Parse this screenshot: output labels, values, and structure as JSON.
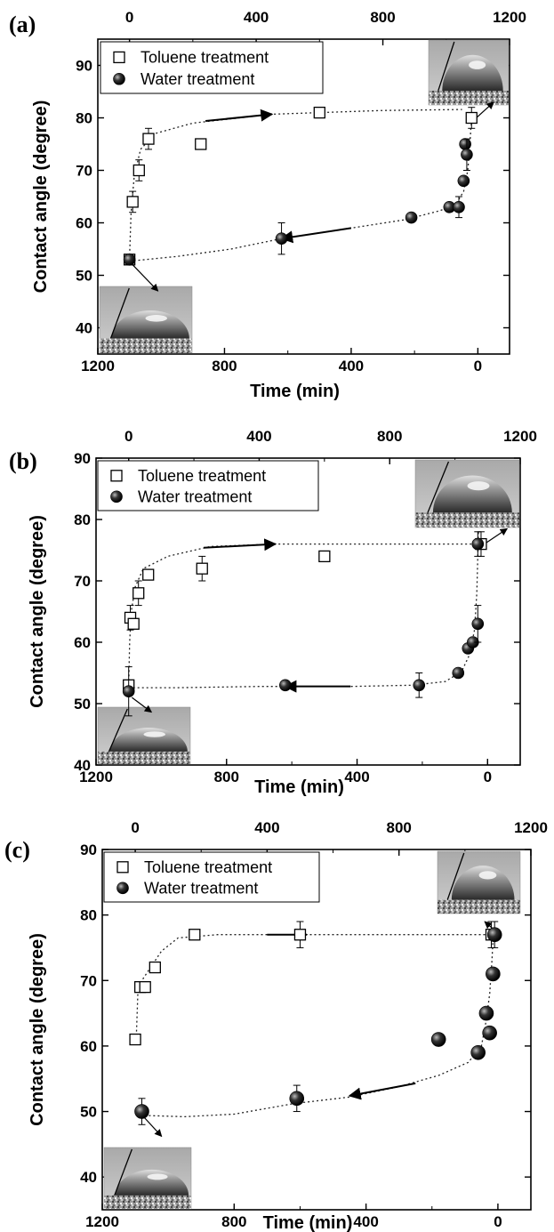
{
  "chart_data": [
    {
      "type": "scatter",
      "panel": "(a)",
      "xlabel": "Time (min)",
      "ylabel": "Contact angle (degree)",
      "xlim": [
        1200,
        -100
      ],
      "ylim": [
        35,
        95
      ],
      "top_xlim": [
        -100,
        1200
      ],
      "x_ticks": [
        1200,
        800,
        400,
        0
      ],
      "top_x_ticks": [
        0,
        400,
        800,
        1200
      ],
      "y_ticks": [
        40,
        50,
        60,
        70,
        80,
        90
      ],
      "legend": [
        "Toluene treatment",
        "Water treatment"
      ],
      "series": [
        {
          "name": "Toluene treatment",
          "marker": "open-square",
          "axis": "top",
          "x": [
            0,
            10,
            30,
            60,
            225,
            600,
            1080
          ],
          "y": [
            53,
            64,
            70,
            76,
            75,
            81,
            80
          ],
          "err": [
            0,
            2,
            2,
            2,
            0,
            0,
            2
          ]
        },
        {
          "name": "Water treatment",
          "marker": "filled-sphere",
          "axis": "bottom",
          "x": [
            1100,
            620,
            210,
            90,
            60,
            45,
            40,
            35
          ],
          "y": [
            53,
            57,
            61,
            63,
            63,
            68,
            75,
            73
          ],
          "err": [
            0,
            3,
            0,
            0,
            2,
            0,
            0,
            3
          ]
        }
      ]
    },
    {
      "type": "scatter",
      "panel": "(b)",
      "xlabel": "Time (min)",
      "ylabel": "Contact angle (degree)",
      "xlim": [
        1200,
        -100
      ],
      "ylim": [
        40,
        90
      ],
      "top_xlim": [
        -100,
        1200
      ],
      "x_ticks": [
        1200,
        800,
        400,
        0
      ],
      "top_x_ticks": [
        0,
        400,
        800,
        1200
      ],
      "y_ticks": [
        40,
        50,
        60,
        70,
        80,
        90
      ],
      "legend": [
        "Toluene treatment",
        "Water treatment"
      ],
      "series": [
        {
          "name": "Toluene treatment",
          "marker": "open-square",
          "axis": "top",
          "x": [
            0,
            5,
            15,
            30,
            60,
            225,
            600,
            1080
          ],
          "y": [
            53,
            64,
            63,
            68,
            71,
            72,
            74,
            76
          ],
          "err": [
            0,
            2,
            0,
            2,
            0,
            2,
            0,
            2
          ]
        },
        {
          "name": "Water treatment",
          "marker": "filled-sphere",
          "axis": "bottom",
          "x": [
            1100,
            620,
            210,
            90,
            60,
            45,
            30,
            30
          ],
          "y": [
            52,
            53,
            53,
            55,
            59,
            60,
            63,
            76
          ],
          "err": [
            4,
            0,
            2,
            0,
            0,
            0,
            3,
            2
          ]
        }
      ]
    },
    {
      "type": "scatter",
      "panel": "(c)",
      "xlabel": "Time (min)",
      "ylabel": "Contact angle (degree)",
      "xlim": [
        1200,
        -100
      ],
      "ylim": [
        35,
        90
      ],
      "top_xlim": [
        -100,
        1200
      ],
      "x_ticks": [
        1200,
        800,
        400,
        0
      ],
      "top_x_ticks": [
        0,
        400,
        800,
        1200
      ],
      "y_ticks": [
        40,
        50,
        60,
        70,
        80,
        90
      ],
      "legend": [
        "Toluene treatment",
        "Water treatment"
      ],
      "series": [
        {
          "name": "Toluene treatment",
          "marker": "open-square",
          "axis": "top",
          "x": [
            0,
            15,
            30,
            60,
            180,
            500,
            1080
          ],
          "y": [
            61,
            69,
            69,
            72,
            77,
            77,
            77
          ],
          "err": [
            0,
            0,
            0,
            0,
            0,
            2,
            2
          ]
        },
        {
          "name": "Water treatment",
          "marker": "filled-sphere",
          "axis": "bottom",
          "x": [
            1080,
            610,
            180,
            60,
            35,
            25,
            15,
            10
          ],
          "y": [
            50,
            52,
            61,
            59,
            65,
            62,
            71,
            77
          ],
          "err": [
            2,
            2,
            0,
            0,
            0,
            0,
            0,
            2
          ]
        }
      ]
    }
  ]
}
